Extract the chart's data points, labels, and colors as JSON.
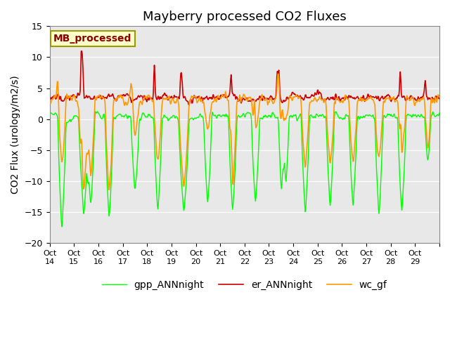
{
  "title": "Mayberry processed CO2 Fluxes",
  "ylabel": "CO2 Flux (urology/m2/s)",
  "xlabel": "",
  "ylim": [
    -20,
    15
  ],
  "yticks": [
    -20,
    -15,
    -10,
    -5,
    0,
    5,
    10,
    15
  ],
  "xtick_labels": [
    "Oct 14",
    "Oct 15",
    "Oct 16",
    "Oct 17",
    "Oct 18",
    "Oct 19",
    "Oct 20",
    "Oct 21",
    "Oct 22",
    "Oct 23",
    "Oct 24",
    "Oct 25",
    "Oct 26",
    "Oct 27",
    "Oct 28",
    "Oct 29"
  ],
  "line_colors": {
    "gpp": "#00ff00",
    "er": "#cc0000",
    "wc": "#ff9900"
  },
  "line_widths": {
    "gpp": 1.0,
    "er": 1.2,
    "wc": 1.2
  },
  "background_color": "#ffffff",
  "plot_bg_color": "#e8e8e8",
  "grid_color": "#ffffff",
  "title_fontsize": 13,
  "label_fontsize": 10,
  "tick_fontsize": 9,
  "annotation_text": "MB_processed",
  "annotation_color": "#8B0000",
  "annotation_bg": "#ffffcc",
  "annotation_edge": "#999900"
}
